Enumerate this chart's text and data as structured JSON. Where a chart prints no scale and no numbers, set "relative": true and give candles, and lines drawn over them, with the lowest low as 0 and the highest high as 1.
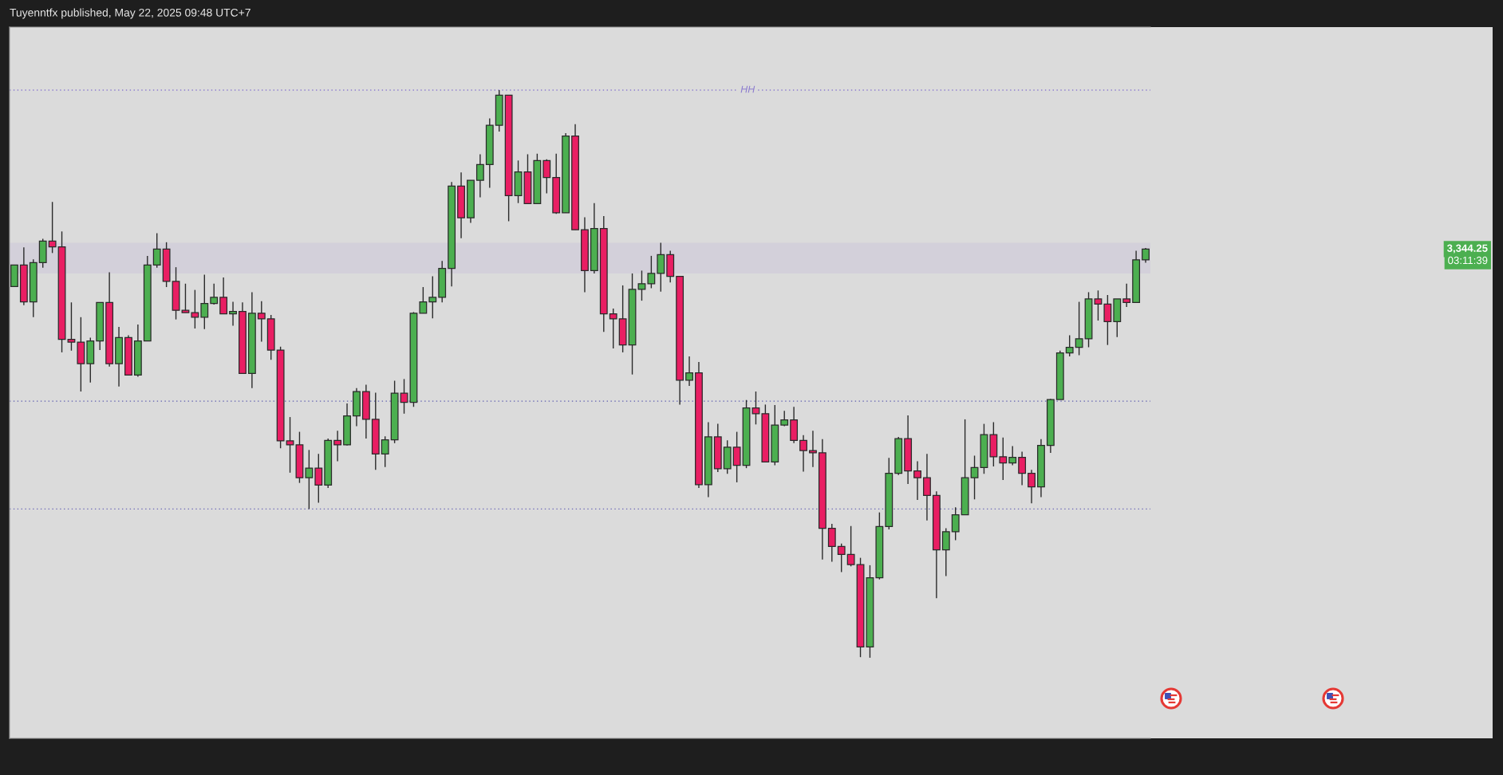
{
  "chart_data": {
    "type": "candlestick",
    "title": "Tuyenntfx published, May 22, 2025 09:48 UTC+7",
    "relative": true,
    "tick_labels": false,
    "categories": [
      null,
      null,
      null,
      null,
      null,
      null,
      null,
      null,
      null,
      null,
      null,
      null,
      null,
      null,
      null,
      null,
      null,
      null,
      null,
      null,
      null,
      null,
      null,
      null,
      null,
      null,
      null,
      null,
      null,
      null,
      null,
      null,
      null,
      null,
      null,
      null,
      null,
      null,
      null,
      null,
      null,
      null,
      null,
      null,
      null,
      null,
      null,
      null,
      null,
      null,
      null,
      null,
      null,
      null,
      null,
      null,
      null,
      null,
      null,
      null,
      null,
      null,
      null,
      null,
      null,
      null,
      null,
      null,
      null,
      null,
      null,
      null,
      null,
      null,
      null,
      null,
      null,
      null,
      null,
      null,
      null,
      null,
      null,
      null,
      null,
      null,
      null,
      null,
      null,
      null,
      null,
      null,
      null,
      null,
      null,
      null,
      null,
      null,
      null,
      null,
      null,
      null,
      null,
      null,
      null,
      null,
      null,
      null,
      null,
      null,
      null,
      null,
      null,
      null,
      null,
      null,
      null,
      null,
      null,
      null
    ],
    "ohlc": [
      [
        0.654,
        0.692,
        0.654,
        0.692
      ],
      [
        0.692,
        0.723,
        0.621,
        0.627
      ],
      [
        0.627,
        0.702,
        0.6,
        0.696
      ],
      [
        0.696,
        0.738,
        0.687,
        0.734
      ],
      [
        0.734,
        0.803,
        0.713,
        0.724
      ],
      [
        0.724,
        0.751,
        0.538,
        0.561
      ],
      [
        0.561,
        0.626,
        0.541,
        0.556
      ],
      [
        0.556,
        0.6,
        0.469,
        0.518
      ],
      [
        0.518,
        0.564,
        0.485,
        0.558
      ],
      [
        0.558,
        0.626,
        0.542,
        0.626
      ],
      [
        0.626,
        0.679,
        0.513,
        0.518
      ],
      [
        0.518,
        0.583,
        0.478,
        0.564
      ],
      [
        0.564,
        0.568,
        0.497,
        0.498
      ],
      [
        0.498,
        0.587,
        0.495,
        0.558
      ],
      [
        0.558,
        0.708,
        0.558,
        0.692
      ],
      [
        0.692,
        0.748,
        0.687,
        0.72
      ],
      [
        0.72,
        0.732,
        0.653,
        0.663
      ],
      [
        0.663,
        0.688,
        0.596,
        0.612
      ],
      [
        0.612,
        0.659,
        0.608,
        0.608
      ],
      [
        0.608,
        0.648,
        0.58,
        0.6
      ],
      [
        0.6,
        0.675,
        0.579,
        0.624
      ],
      [
        0.624,
        0.659,
        0.622,
        0.635
      ],
      [
        0.635,
        0.67,
        0.606,
        0.606
      ],
      [
        0.606,
        0.627,
        0.585,
        0.61
      ],
      [
        0.61,
        0.626,
        0.5,
        0.501
      ],
      [
        0.501,
        0.644,
        0.475,
        0.607
      ],
      [
        0.607,
        0.628,
        0.557,
        0.597
      ],
      [
        0.597,
        0.604,
        0.525,
        0.542
      ],
      [
        0.542,
        0.548,
        0.369,
        0.382
      ],
      [
        0.382,
        0.424,
        0.326,
        0.375
      ],
      [
        0.375,
        0.398,
        0.308,
        0.317
      ],
      [
        0.317,
        0.366,
        0.262,
        0.334
      ],
      [
        0.334,
        0.359,
        0.273,
        0.304
      ],
      [
        0.304,
        0.386,
        0.299,
        0.383
      ],
      [
        0.383,
        0.4,
        0.346,
        0.375
      ],
      [
        0.375,
        0.448,
        0.374,
        0.426
      ],
      [
        0.426,
        0.475,
        0.408,
        0.469
      ],
      [
        0.469,
        0.481,
        0.386,
        0.42
      ],
      [
        0.42,
        0.467,
        0.331,
        0.359
      ],
      [
        0.359,
        0.39,
        0.336,
        0.384
      ],
      [
        0.384,
        0.488,
        0.378,
        0.466
      ],
      [
        0.466,
        0.491,
        0.43,
        0.45
      ],
      [
        0.45,
        0.609,
        0.442,
        0.607
      ],
      [
        0.607,
        0.653,
        0.607,
        0.627
      ],
      [
        0.627,
        0.672,
        0.598,
        0.635
      ],
      [
        0.635,
        0.699,
        0.626,
        0.686
      ],
      [
        0.686,
        0.838,
        0.654,
        0.831
      ],
      [
        0.831,
        0.855,
        0.739,
        0.775
      ],
      [
        0.775,
        0.841,
        0.766,
        0.841
      ],
      [
        0.841,
        0.887,
        0.811,
        0.869
      ],
      [
        0.869,
        0.95,
        0.828,
        0.938
      ],
      [
        0.938,
        1,
        0.927,
        0.991
      ],
      [
        0.991,
        0.991,
        0.769,
        0.814
      ],
      [
        0.814,
        0.876,
        0.801,
        0.856
      ],
      [
        0.856,
        0.887,
        0.8,
        0.8
      ],
      [
        0.8,
        0.888,
        0.8,
        0.876
      ],
      [
        0.876,
        0.878,
        0.818,
        0.846
      ],
      [
        0.846,
        0.888,
        0.782,
        0.784
      ],
      [
        0.784,
        0.924,
        0.784,
        0.919
      ],
      [
        0.919,
        0.94,
        0.754,
        0.754
      ],
      [
        0.754,
        0.776,
        0.644,
        0.682
      ],
      [
        0.682,
        0.801,
        0.677,
        0.756
      ],
      [
        0.756,
        0.778,
        0.574,
        0.606
      ],
      [
        0.606,
        0.615,
        0.545,
        0.597
      ],
      [
        0.597,
        0.656,
        0.538,
        0.551
      ],
      [
        0.551,
        0.677,
        0.499,
        0.649
      ],
      [
        0.649,
        0.682,
        0.629,
        0.659
      ],
      [
        0.659,
        0.708,
        0.651,
        0.677
      ],
      [
        0.677,
        0.731,
        0.645,
        0.71
      ],
      [
        0.71,
        0.717,
        0.661,
        0.672
      ],
      [
        0.672,
        0.672,
        0.446,
        0.489
      ],
      [
        0.489,
        0.531,
        0.479,
        0.502
      ],
      [
        0.502,
        0.521,
        0.299,
        0.305
      ],
      [
        0.305,
        0.415,
        0.283,
        0.389
      ],
      [
        0.389,
        0.412,
        0.327,
        0.333
      ],
      [
        0.333,
        0.383,
        0.324,
        0.371
      ],
      [
        0.371,
        0.398,
        0.309,
        0.339
      ],
      [
        0.339,
        0.454,
        0.334,
        0.44
      ],
      [
        0.44,
        0.469,
        0.411,
        0.43
      ],
      [
        0.43,
        0.446,
        0.345,
        0.345
      ],
      [
        0.345,
        0.445,
        0.339,
        0.41
      ],
      [
        0.41,
        0.435,
        0.408,
        0.419
      ],
      [
        0.419,
        0.442,
        0.378,
        0.383
      ],
      [
        0.383,
        0.392,
        0.328,
        0.365
      ],
      [
        0.365,
        0.4,
        0.336,
        0.361
      ],
      [
        0.361,
        0.385,
        0.173,
        0.228
      ],
      [
        0.228,
        0.236,
        0.169,
        0.196
      ],
      [
        0.196,
        0.201,
        0.151,
        0.182
      ],
      [
        0.182,
        0.232,
        0.161,
        0.164
      ],
      [
        0.164,
        0.176,
        0.001,
        0.019
      ],
      [
        0.019,
        0.163,
        0,
        0.141
      ],
      [
        0.141,
        0.256,
        0.138,
        0.231
      ],
      [
        0.231,
        0.352,
        0.226,
        0.325
      ],
      [
        0.325,
        0.389,
        0.322,
        0.386
      ],
      [
        0.386,
        0.427,
        0.306,
        0.329
      ],
      [
        0.329,
        0.346,
        0.278,
        0.317
      ],
      [
        0.317,
        0.359,
        0.242,
        0.286
      ],
      [
        0.286,
        0.293,
        0.105,
        0.19
      ],
      [
        0.19,
        0.228,
        0.144,
        0.222
      ],
      [
        0.222,
        0.265,
        0.207,
        0.252
      ],
      [
        0.252,
        0.42,
        0.252,
        0.317
      ],
      [
        0.317,
        0.356,
        0.279,
        0.335
      ],
      [
        0.335,
        0.412,
        0.324,
        0.393
      ],
      [
        0.393,
        0.415,
        0.337,
        0.354
      ],
      [
        0.354,
        0.388,
        0.313,
        0.343
      ],
      [
        0.343,
        0.373,
        0.339,
        0.353
      ],
      [
        0.353,
        0.363,
        0.304,
        0.325
      ],
      [
        0.325,
        0.331,
        0.272,
        0.301
      ],
      [
        0.301,
        0.385,
        0.283,
        0.374
      ],
      [
        0.374,
        0.456,
        0.361,
        0.455
      ],
      [
        0.455,
        0.541,
        0.455,
        0.537
      ],
      [
        0.537,
        0.568,
        0.531,
        0.547
      ],
      [
        0.547,
        0.627,
        0.533,
        0.562
      ],
      [
        0.562,
        0.644,
        0.547,
        0.632
      ],
      [
        0.632,
        0.647,
        0.594,
        0.623
      ],
      [
        0.623,
        0.639,
        0.551,
        0.592
      ],
      [
        0.592,
        0.632,
        0.565,
        0.632
      ],
      [
        0.632,
        0.659,
        0.618,
        0.626
      ],
      [
        0.626,
        0.717,
        0.626,
        0.701
      ],
      [
        0.701,
        0.722,
        0.696,
        0.72
      ]
    ],
    "colors": [
      "#4caf50",
      "#e91e63",
      "#4caf50",
      "#4caf50",
      "#e91e63",
      "#e91e63",
      "#e91e63",
      "#e91e63",
      "#4caf50",
      "#4caf50",
      "#e91e63",
      "#4caf50",
      "#e91e63",
      "#4caf50",
      "#4caf50",
      "#4caf50",
      "#e91e63",
      "#e91e63",
      "#e91e63",
      "#e91e63",
      "#4caf50",
      "#4caf50",
      "#e91e63",
      "#4caf50",
      "#e91e63",
      "#4caf50",
      "#e91e63",
      "#e91e63",
      "#e91e63",
      "#e91e63",
      "#e91e63",
      "#4caf50",
      "#e91e63",
      "#4caf50",
      "#e91e63",
      "#4caf50",
      "#4caf50",
      "#e91e63",
      "#e91e63",
      "#4caf50",
      "#4caf50",
      "#e91e63",
      "#4caf50",
      "#4caf50",
      "#4caf50",
      "#4caf50",
      "#4caf50",
      "#e91e63",
      "#4caf50",
      "#4caf50",
      "#4caf50",
      "#4caf50",
      "#e91e63",
      "#4caf50",
      "#e91e63",
      "#4caf50",
      "#e91e63",
      "#e91e63",
      "#4caf50",
      "#e91e63",
      "#e91e63",
      "#4caf50",
      "#e91e63",
      "#e91e63",
      "#e91e63",
      "#4caf50",
      "#4caf50",
      "#4caf50",
      "#4caf50",
      "#e91e63",
      "#e91e63",
      "#4caf50",
      "#e91e63",
      "#4caf50",
      "#e91e63",
      "#4caf50",
      "#e91e63",
      "#4caf50",
      "#e91e63",
      "#e91e63",
      "#4caf50",
      "#4caf50",
      "#e91e63",
      "#e91e63",
      "#e91e63",
      "#e91e63",
      "#e91e63",
      "#e91e63",
      "#e91e63",
      "#e91e63",
      "#4caf50",
      "#4caf50",
      "#4caf50",
      "#4caf50",
      "#e91e63",
      "#e91e63",
      "#e91e63",
      "#e91e63",
      "#4caf50",
      "#4caf50",
      "#4caf50",
      "#4caf50",
      "#4caf50",
      "#e91e63",
      "#e91e63",
      "#4caf50",
      "#e91e63",
      "#e91e63",
      "#4caf50",
      "#4caf50",
      "#4caf50",
      "#4caf50",
      "#4caf50",
      "#4caf50",
      "#e91e63",
      "#e91e63",
      "#4caf50",
      "#e91e63",
      "#4caf50",
      "#4caf50"
    ],
    "ref_lines": [
      {
        "axis": "y",
        "value": 1,
        "label": "HH",
        "color": "#8c7ccf",
        "line_style": "dotted"
      },
      {
        "axis": "y",
        "value": 0.452,
        "color": "#5f5fb0",
        "line_style": "dotted"
      },
      {
        "axis": "y",
        "value": 0.262,
        "color": "#6d6ab8",
        "line_style": "dotted"
      }
    ],
    "bands": [
      {
        "axis": "y",
        "from": 0.677,
        "to": 0.731,
        "color": "#d3d0da"
      }
    ],
    "annotations": [
      "3,344.25",
      "03:11:39"
    ]
  }
}
